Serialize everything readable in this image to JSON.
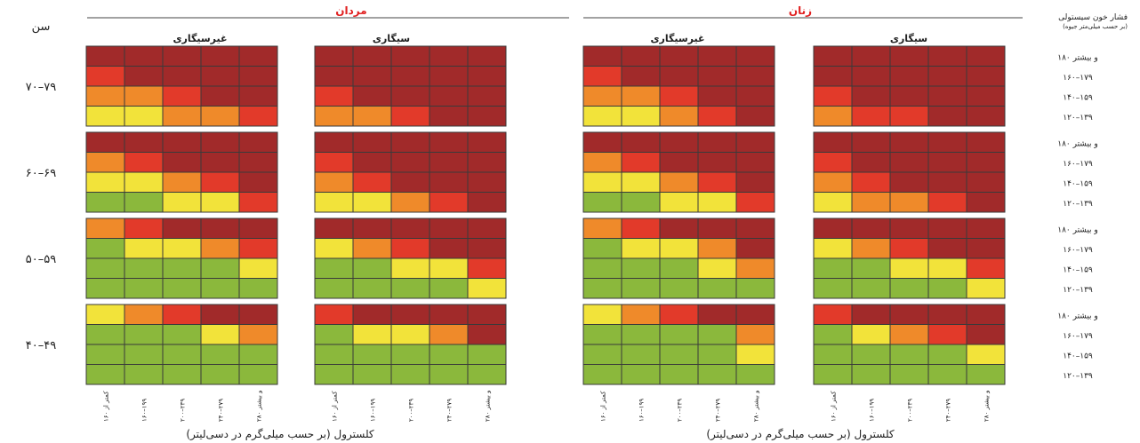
{
  "chart_data": {
    "type": "heatmap",
    "header_label": "سن",
    "row_axis_label_line1": "فشار خون سیستولی",
    "row_axis_label_line2": "(بر حسب میلی‌متر جیوه)",
    "x_axis_label": "کلسترول (بر حسب میلی‌گرم در دسی‌لیتر)",
    "sexes": [
      "مردان",
      "زنان"
    ],
    "smoking_groups": [
      "غیرسیگاری",
      "سیگاری"
    ],
    "age_groups": [
      "۷۰–۷۹",
      "۶۰–۶۹",
      "۵۰–۵۹",
      "۴۰–۴۹"
    ],
    "bp_levels": [
      "۱۸۰ و بیشتر",
      "۱۶۰–۱۷۹",
      "۱۴۰–۱۵۹",
      "۱۲۰–۱۳۹"
    ],
    "chol_levels": [
      "کمتر از ۱۶۰",
      "۱۶۰–۱۹۹",
      "۲۰۰–۲۳۹",
      "۲۴۰–۲۷۹",
      "۲۸۰ و بیشتر"
    ],
    "risk_colors": {
      "1": "#8bb83c",
      "2": "#f2e33a",
      "3": "#ef8a2a",
      "4": "#e23a2a",
      "5": "#a12a2a"
    },
    "panels": {
      "men_nonsmoker": [
        [
          [
            5,
            5,
            5,
            5,
            5
          ],
          [
            4,
            5,
            5,
            5,
            5
          ],
          [
            3,
            3,
            4,
            5,
            5
          ],
          [
            2,
            2,
            3,
            3,
            4
          ]
        ],
        [
          [
            5,
            5,
            5,
            5,
            5
          ],
          [
            3,
            4,
            5,
            5,
            5
          ],
          [
            2,
            2,
            3,
            4,
            5
          ],
          [
            1,
            1,
            2,
            2,
            4
          ]
        ],
        [
          [
            3,
            4,
            5,
            5,
            5
          ],
          [
            1,
            2,
            2,
            3,
            4
          ],
          [
            1,
            1,
            1,
            1,
            2
          ],
          [
            1,
            1,
            1,
            1,
            1
          ]
        ],
        [
          [
            2,
            3,
            4,
            5,
            5
          ],
          [
            1,
            1,
            1,
            2,
            3
          ],
          [
            1,
            1,
            1,
            1,
            1
          ],
          [
            1,
            1,
            1,
            1,
            1
          ]
        ]
      ],
      "men_smoker": [
        [
          [
            5,
            5,
            5,
            5,
            5
          ],
          [
            5,
            5,
            5,
            5,
            5
          ],
          [
            4,
            5,
            5,
            5,
            5
          ],
          [
            3,
            3,
            4,
            5,
            5
          ]
        ],
        [
          [
            5,
            5,
            5,
            5,
            5
          ],
          [
            4,
            5,
            5,
            5,
            5
          ],
          [
            3,
            4,
            5,
            5,
            5
          ],
          [
            2,
            2,
            3,
            4,
            5
          ]
        ],
        [
          [
            5,
            5,
            5,
            5,
            5
          ],
          [
            2,
            3,
            4,
            5,
            5
          ],
          [
            1,
            1,
            2,
            2,
            4
          ],
          [
            1,
            1,
            1,
            1,
            2
          ]
        ],
        [
          [
            4,
            5,
            5,
            5,
            5
          ],
          [
            1,
            2,
            2,
            3,
            5
          ],
          [
            1,
            1,
            1,
            1,
            1
          ],
          [
            1,
            1,
            1,
            1,
            1
          ]
        ]
      ],
      "women_nonsmoker": [
        [
          [
            5,
            5,
            5,
            5,
            5
          ],
          [
            4,
            5,
            5,
            5,
            5
          ],
          [
            3,
            3,
            4,
            5,
            5
          ],
          [
            2,
            2,
            3,
            4,
            5
          ]
        ],
        [
          [
            5,
            5,
            5,
            5,
            5
          ],
          [
            3,
            4,
            5,
            5,
            5
          ],
          [
            2,
            2,
            3,
            4,
            5
          ],
          [
            1,
            1,
            2,
            2,
            4
          ]
        ],
        [
          [
            3,
            4,
            5,
            5,
            5
          ],
          [
            1,
            2,
            2,
            3,
            5
          ],
          [
            1,
            1,
            1,
            2,
            3
          ],
          [
            1,
            1,
            1,
            1,
            1
          ]
        ],
        [
          [
            2,
            3,
            4,
            5,
            5
          ],
          [
            1,
            1,
            1,
            1,
            3
          ],
          [
            1,
            1,
            1,
            1,
            2
          ],
          [
            1,
            1,
            1,
            1,
            1
          ]
        ]
      ],
      "women_smoker": [
        [
          [
            5,
            5,
            5,
            5,
            5
          ],
          [
            5,
            5,
            5,
            5,
            5
          ],
          [
            4,
            5,
            5,
            5,
            5
          ],
          [
            3,
            4,
            4,
            5,
            5
          ]
        ],
        [
          [
            5,
            5,
            5,
            5,
            5
          ],
          [
            4,
            5,
            5,
            5,
            5
          ],
          [
            3,
            4,
            5,
            5,
            5
          ],
          [
            2,
            3,
            3,
            4,
            5
          ]
        ],
        [
          [
            5,
            5,
            5,
            5,
            5
          ],
          [
            2,
            3,
            4,
            5,
            5
          ],
          [
            1,
            1,
            2,
            2,
            4
          ],
          [
            1,
            1,
            1,
            1,
            2
          ]
        ],
        [
          [
            4,
            5,
            5,
            5,
            5
          ],
          [
            1,
            2,
            3,
            4,
            5
          ],
          [
            1,
            1,
            1,
            1,
            2
          ],
          [
            1,
            1,
            1,
            1,
            1
          ]
        ]
      ]
    }
  }
}
